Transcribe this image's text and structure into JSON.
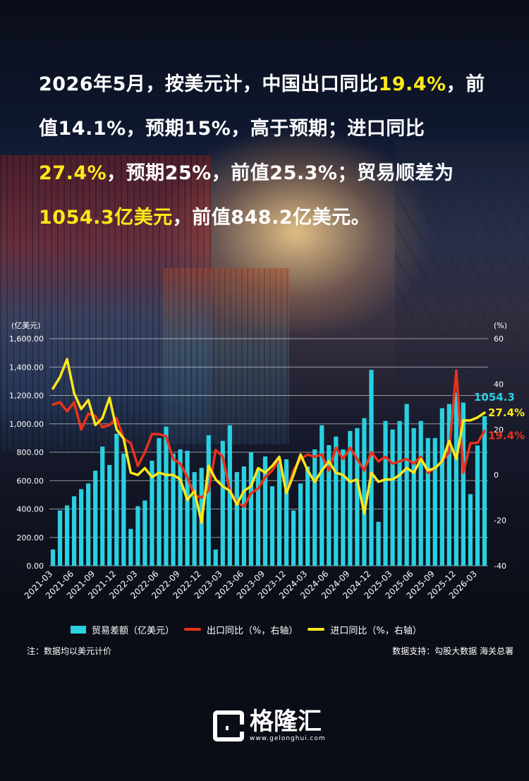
{
  "headline": {
    "p1": "2026年5月，按美元计，中国出口同比",
    "h1": "19.4%",
    "p2": "，前值14.1%，预期15%，高于预期；进口同比",
    "h2": "27.4%",
    "p3": "，预期25%，前值25.3%；贸易顺差为",
    "h3": "1054.3亿美元",
    "p4": "，前值848.2亿美元。"
  },
  "colors": {
    "bars": "#2ad0e0",
    "export_line": "#e8321c",
    "import_line": "#ffe81a",
    "highlight": "#ffe81a"
  },
  "chart_data": {
    "type": "bar",
    "left_axis_unit": "(亿美元)",
    "right_axis_unit": "(%)",
    "left_ylim": [
      0,
      1600
    ],
    "right_ylim": [
      -40,
      60
    ],
    "left_ticks": [
      "0.00",
      "200.00",
      "400.00",
      "600.00",
      "800.00",
      "1,000.00",
      "1,200.00",
      "1,400.00",
      "1,600.00"
    ],
    "right_ticks": [
      "-40",
      "-20",
      "0",
      "20",
      "40",
      "60"
    ],
    "x_tick_labels": [
      "2021-03",
      "2021-06",
      "2021-09",
      "2021-12",
      "2022-03",
      "2022-06",
      "2022-09",
      "2022-12",
      "2023-03",
      "2023-06",
      "2023-09",
      "2023-12",
      "2024-03",
      "2024-06",
      "2024-09",
      "2024-12",
      "2025-03",
      "2025-06",
      "2025-09",
      "2025-12",
      "2026-03"
    ],
    "grid": true,
    "legend_position": "bottom",
    "series": [
      {
        "name": "贸易差额（亿美元）",
        "type": "bar",
        "axis": "left",
        "values": [
          115,
          390,
          425,
          490,
          540,
          580,
          670,
          840,
          710,
          930,
          790,
          260,
          420,
          460,
          740,
          900,
          980,
          790,
          820,
          810,
          660,
          690,
          920,
          115,
          880,
          990,
          660,
          700,
          800,
          680,
          770,
          560,
          750,
          750,
          390,
          580,
          700,
          820,
          990,
          850,
          910,
          820,
          950,
          970,
          1040,
          1380,
          310,
          1020,
          960,
          1020,
          1140,
          970,
          1020,
          900,
          900,
          1110,
          1140,
          1220,
          1150,
          505,
          848,
          1054
        ]
      },
      {
        "name": "出口同比（%，右轴）",
        "type": "line",
        "axis": "right",
        "values": [
          31,
          32,
          28,
          32,
          20,
          27,
          26,
          21,
          22,
          25,
          16,
          14,
          4,
          10,
          18,
          18,
          17,
          7,
          5,
          -1,
          -9,
          -10,
          -7,
          11,
          8,
          -7,
          -12,
          -14,
          -8,
          -6,
          -1,
          2,
          7,
          -8,
          2,
          7,
          9,
          8,
          9,
          2,
          12,
          7,
          12,
          7,
          2,
          10,
          6,
          8,
          5,
          6,
          7,
          5,
          8,
          1,
          3,
          6,
          10,
          46,
          1,
          14,
          14.1,
          19.4
        ]
      },
      {
        "name": "进口同比（%，右轴）",
        "type": "line",
        "axis": "right",
        "values": [
          38,
          43,
          51,
          36,
          29,
          33,
          22,
          25,
          34,
          20,
          16,
          1,
          0,
          3,
          -1,
          1,
          0,
          0,
          -2,
          -11,
          -7,
          -21,
          4,
          -2,
          -5,
          -7,
          -13,
          -7,
          -5,
          3,
          1,
          4,
          8,
          -8,
          0,
          9,
          2,
          -3,
          2,
          6,
          1,
          0,
          -3,
          -2,
          -17,
          1,
          -3,
          -2,
          -2,
          0,
          3,
          1,
          7,
          2,
          3,
          6,
          15,
          7,
          24,
          24,
          25.3,
          27.4
        ]
      }
    ],
    "end_labels": {
      "balance": "1054.3",
      "import": "27.4%",
      "export": "19.4%"
    }
  },
  "legend": {
    "bars": "贸易差额（亿美元）",
    "export": "出口同比（%，右轴）",
    "import": "进口同比（%，右轴）"
  },
  "footer": {
    "note": "注：数据均以美元计价",
    "source": "数据支持：勾股大数据 海关总署"
  },
  "logo": {
    "name": "格隆汇",
    "url": "www.gelonghui.com"
  }
}
